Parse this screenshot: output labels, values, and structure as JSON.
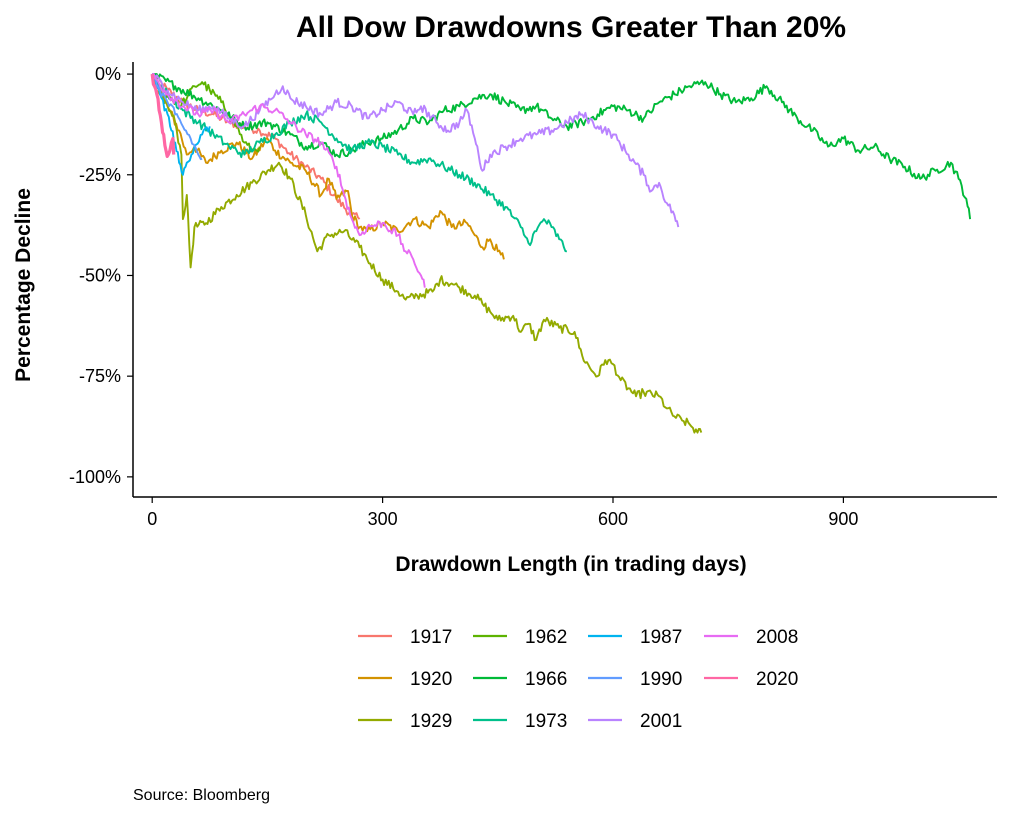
{
  "chart_data": {
    "type": "line",
    "title": "All Dow Drawdowns Greater Than 20%",
    "xlabel": "Drawdown Length (in trading days)",
    "ylabel": "Percentage Decline",
    "xlim": [
      -25,
      1100
    ],
    "ylim": [
      -105,
      3
    ],
    "x_ticks": [
      0,
      300,
      600,
      900
    ],
    "x_tick_labels": [
      "0",
      "300",
      "600",
      "900"
    ],
    "y_ticks": [
      0,
      -25,
      -50,
      -75,
      -100
    ],
    "y_tick_labels": [
      "0%",
      "-25%",
      "-50%",
      "-75%",
      "-100%"
    ],
    "grid": false,
    "legend_position": "bottom",
    "series": [
      {
        "name": "1917",
        "color": "#F8766D",
        "points": [
          [
            0,
            0
          ],
          [
            20,
            -4
          ],
          [
            40,
            -7
          ],
          [
            60,
            -9
          ],
          [
            80,
            -10
          ],
          [
            100,
            -12
          ],
          [
            120,
            -13
          ],
          [
            140,
            -14
          ],
          [
            160,
            -16
          ],
          [
            180,
            -20
          ],
          [
            200,
            -23
          ],
          [
            220,
            -26
          ],
          [
            240,
            -31
          ],
          [
            260,
            -35
          ],
          [
            270,
            -36
          ]
        ]
      },
      {
        "name": "1920",
        "color": "#D39200",
        "points": [
          [
            0,
            0
          ],
          [
            10,
            -5
          ],
          [
            20,
            -8
          ],
          [
            35,
            -14
          ],
          [
            45,
            -20
          ],
          [
            55,
            -18
          ],
          [
            70,
            -22
          ],
          [
            90,
            -19
          ],
          [
            110,
            -17
          ],
          [
            130,
            -21
          ],
          [
            150,
            -16
          ],
          [
            160,
            -19
          ],
          [
            180,
            -22
          ],
          [
            200,
            -24
          ],
          [
            220,
            -30
          ],
          [
            230,
            -26
          ],
          [
            240,
            -31
          ],
          [
            255,
            -29
          ],
          [
            260,
            -35
          ],
          [
            270,
            -38
          ],
          [
            280,
            -39
          ],
          [
            300,
            -37
          ],
          [
            320,
            -39
          ],
          [
            340,
            -36
          ],
          [
            360,
            -38
          ],
          [
            375,
            -34
          ],
          [
            390,
            -38
          ],
          [
            410,
            -37
          ],
          [
            420,
            -40
          ],
          [
            430,
            -43
          ],
          [
            440,
            -41
          ],
          [
            450,
            -44
          ],
          [
            458,
            -46
          ]
        ]
      },
      {
        "name": "1929",
        "color": "#93AA00",
        "points": [
          [
            0,
            0
          ],
          [
            10,
            -4
          ],
          [
            20,
            -8
          ],
          [
            30,
            -12
          ],
          [
            38,
            -20
          ],
          [
            40,
            -36
          ],
          [
            45,
            -30
          ],
          [
            50,
            -48
          ],
          [
            55,
            -38
          ],
          [
            70,
            -37
          ],
          [
            90,
            -33
          ],
          [
            110,
            -30
          ],
          [
            130,
            -27
          ],
          [
            150,
            -24
          ],
          [
            165,
            -22
          ],
          [
            180,
            -26
          ],
          [
            200,
            -35
          ],
          [
            215,
            -44
          ],
          [
            230,
            -40
          ],
          [
            250,
            -39
          ],
          [
            270,
            -43
          ],
          [
            280,
            -46
          ],
          [
            300,
            -51
          ],
          [
            320,
            -54
          ],
          [
            330,
            -56
          ],
          [
            345,
            -55
          ],
          [
            365,
            -54
          ],
          [
            375,
            -51
          ],
          [
            390,
            -52
          ],
          [
            400,
            -53
          ],
          [
            420,
            -55
          ],
          [
            430,
            -57
          ],
          [
            440,
            -59
          ],
          [
            450,
            -61
          ],
          [
            470,
            -60
          ],
          [
            480,
            -64
          ],
          [
            490,
            -62
          ],
          [
            500,
            -66
          ],
          [
            510,
            -61
          ],
          [
            530,
            -63
          ],
          [
            550,
            -64
          ],
          [
            560,
            -70
          ],
          [
            570,
            -73
          ],
          [
            580,
            -75
          ],
          [
            590,
            -71
          ],
          [
            600,
            -72
          ],
          [
            610,
            -76
          ],
          [
            620,
            -78
          ],
          [
            630,
            -80
          ],
          [
            640,
            -79
          ],
          [
            660,
            -80
          ],
          [
            670,
            -83
          ],
          [
            680,
            -85
          ],
          [
            690,
            -86
          ],
          [
            700,
            -87
          ],
          [
            710,
            -89
          ],
          [
            715,
            -89
          ]
        ]
      },
      {
        "name": "1962",
        "color": "#5DB300",
        "points": [
          [
            0,
            0
          ],
          [
            15,
            -4
          ],
          [
            25,
            -6
          ],
          [
            35,
            -8
          ],
          [
            45,
            -6
          ],
          [
            55,
            -3
          ],
          [
            65,
            -2
          ],
          [
            75,
            -4
          ],
          [
            90,
            -7
          ],
          [
            100,
            -10
          ],
          [
            110,
            -13
          ],
          [
            120,
            -17
          ],
          [
            130,
            -19
          ],
          [
            140,
            -18
          ]
        ]
      },
      {
        "name": "1966",
        "color": "#00BA38",
        "points": [
          [
            0,
            0
          ],
          [
            30,
            -3
          ],
          [
            60,
            -6
          ],
          [
            90,
            -9
          ],
          [
            120,
            -13
          ],
          [
            150,
            -12
          ],
          [
            180,
            -15
          ],
          [
            200,
            -18
          ],
          [
            220,
            -17
          ],
          [
            240,
            -20
          ],
          [
            260,
            -19
          ],
          [
            280,
            -17
          ],
          [
            300,
            -16
          ],
          [
            320,
            -14
          ],
          [
            340,
            -11
          ],
          [
            360,
            -12
          ],
          [
            380,
            -9
          ],
          [
            400,
            -8
          ],
          [
            420,
            -6
          ],
          [
            440,
            -5
          ],
          [
            460,
            -7
          ],
          [
            480,
            -9
          ],
          [
            500,
            -8
          ],
          [
            520,
            -11
          ],
          [
            540,
            -13
          ],
          [
            560,
            -12
          ],
          [
            580,
            -10
          ],
          [
            600,
            -8
          ],
          [
            620,
            -9
          ],
          [
            640,
            -11
          ],
          [
            660,
            -7
          ],
          [
            680,
            -5
          ],
          [
            700,
            -3
          ],
          [
            720,
            -2
          ],
          [
            740,
            -5
          ],
          [
            760,
            -7
          ],
          [
            780,
            -6
          ],
          [
            800,
            -3
          ],
          [
            820,
            -7
          ],
          [
            840,
            -11
          ],
          [
            860,
            -14
          ],
          [
            880,
            -18
          ],
          [
            900,
            -16
          ],
          [
            920,
            -19
          ],
          [
            940,
            -18
          ],
          [
            960,
            -21
          ],
          [
            980,
            -23
          ],
          [
            1000,
            -26
          ],
          [
            1020,
            -24
          ],
          [
            1040,
            -22
          ],
          [
            1050,
            -26
          ],
          [
            1060,
            -31
          ],
          [
            1065,
            -36
          ]
        ]
      },
      {
        "name": "1973",
        "color": "#00C08B",
        "points": [
          [
            0,
            0
          ],
          [
            20,
            -5
          ],
          [
            40,
            -9
          ],
          [
            60,
            -12
          ],
          [
            80,
            -15
          ],
          [
            100,
            -18
          ],
          [
            120,
            -20
          ],
          [
            140,
            -17
          ],
          [
            160,
            -15
          ],
          [
            180,
            -12
          ],
          [
            200,
            -10
          ],
          [
            220,
            -12
          ],
          [
            240,
            -16
          ],
          [
            260,
            -19
          ],
          [
            280,
            -17
          ],
          [
            300,
            -18
          ],
          [
            320,
            -20
          ],
          [
            340,
            -22
          ],
          [
            360,
            -21
          ],
          [
            380,
            -23
          ],
          [
            400,
            -25
          ],
          [
            420,
            -27
          ],
          [
            440,
            -30
          ],
          [
            460,
            -33
          ],
          [
            480,
            -38
          ],
          [
            490,
            -42
          ],
          [
            500,
            -39
          ],
          [
            510,
            -36
          ],
          [
            520,
            -38
          ],
          [
            530,
            -41
          ],
          [
            540,
            -44
          ]
        ]
      },
      {
        "name": "1987",
        "color": "#00B4EF",
        "points": [
          [
            0,
            0
          ],
          [
            10,
            -5
          ],
          [
            20,
            -10
          ],
          [
            25,
            -14
          ],
          [
            30,
            -17
          ],
          [
            35,
            -22
          ],
          [
            40,
            -25
          ],
          [
            45,
            -22
          ],
          [
            55,
            -18
          ],
          [
            65,
            -15
          ],
          [
            75,
            -13
          ]
        ]
      },
      {
        "name": "1990",
        "color": "#619CFF",
        "points": [
          [
            0,
            0
          ],
          [
            10,
            -4
          ],
          [
            20,
            -7
          ],
          [
            30,
            -10
          ],
          [
            40,
            -13
          ],
          [
            50,
            -16
          ],
          [
            60,
            -20
          ],
          [
            65,
            -21
          ]
        ]
      },
      {
        "name": "2001",
        "color": "#B983FF",
        "points": [
          [
            0,
            0
          ],
          [
            20,
            -4
          ],
          [
            40,
            -7
          ],
          [
            60,
            -9
          ],
          [
            80,
            -8
          ],
          [
            100,
            -11
          ],
          [
            120,
            -13
          ],
          [
            140,
            -9
          ],
          [
            160,
            -5
          ],
          [
            170,
            -3
          ],
          [
            180,
            -6
          ],
          [
            200,
            -8
          ],
          [
            220,
            -10
          ],
          [
            240,
            -7
          ],
          [
            260,
            -8
          ],
          [
            280,
            -11
          ],
          [
            300,
            -9
          ],
          [
            320,
            -7
          ],
          [
            340,
            -10
          ],
          [
            350,
            -8
          ],
          [
            370,
            -12
          ],
          [
            385,
            -14
          ],
          [
            400,
            -12
          ],
          [
            410,
            -9
          ],
          [
            420,
            -16
          ],
          [
            425,
            -20
          ],
          [
            430,
            -24
          ],
          [
            440,
            -20
          ],
          [
            460,
            -18
          ],
          [
            480,
            -16
          ],
          [
            500,
            -15
          ],
          [
            520,
            -14
          ],
          [
            540,
            -12
          ],
          [
            560,
            -10
          ],
          [
            580,
            -13
          ],
          [
            600,
            -15
          ],
          [
            620,
            -20
          ],
          [
            640,
            -25
          ],
          [
            650,
            -29
          ],
          [
            660,
            -27
          ],
          [
            670,
            -32
          ],
          [
            680,
            -35
          ],
          [
            685,
            -38
          ]
        ]
      },
      {
        "name": "2008",
        "color": "#E76BF3",
        "points": [
          [
            0,
            0
          ],
          [
            20,
            -5
          ],
          [
            40,
            -8
          ],
          [
            60,
            -10
          ],
          [
            80,
            -9
          ],
          [
            100,
            -12
          ],
          [
            120,
            -10
          ],
          [
            140,
            -8
          ],
          [
            160,
            -9
          ],
          [
            180,
            -12
          ],
          [
            200,
            -15
          ],
          [
            220,
            -17
          ],
          [
            240,
            -23
          ],
          [
            250,
            -30
          ],
          [
            260,
            -36
          ],
          [
            270,
            -40
          ],
          [
            280,
            -38
          ],
          [
            300,
            -37
          ],
          [
            320,
            -40
          ],
          [
            330,
            -44
          ],
          [
            340,
            -46
          ],
          [
            350,
            -50
          ],
          [
            355,
            -53
          ]
        ]
      },
      {
        "name": "2020",
        "color": "#FF67A4",
        "points": [
          [
            0,
            0
          ],
          [
            3,
            -3
          ],
          [
            6,
            -5
          ],
          [
            9,
            -9
          ],
          [
            12,
            -12
          ],
          [
            15,
            -15
          ],
          [
            18,
            -19
          ],
          [
            21,
            -20
          ],
          [
            23,
            -19
          ],
          [
            25,
            -17
          ],
          [
            27,
            -16
          ],
          [
            28,
            -20
          ]
        ]
      }
    ],
    "source": "Source:  Bloomberg"
  }
}
